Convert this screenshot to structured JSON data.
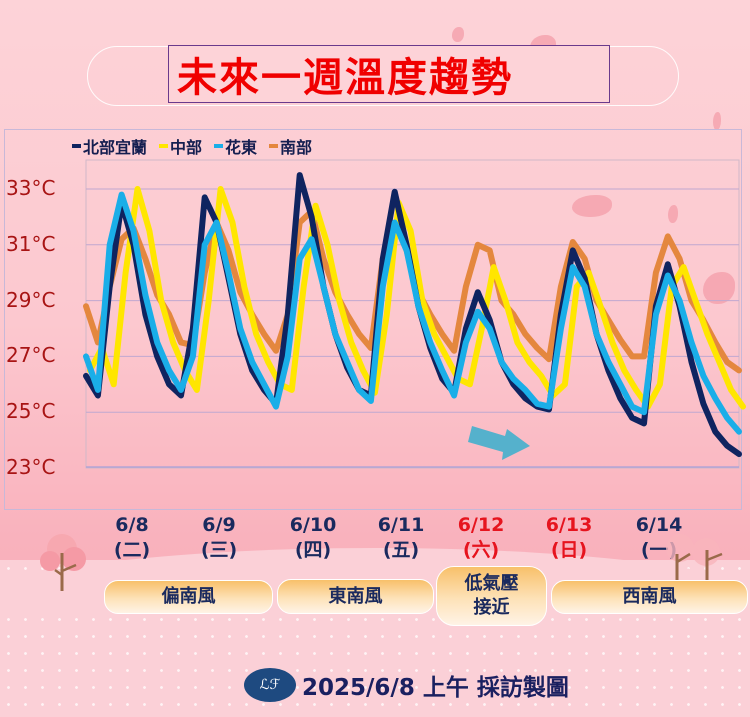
{
  "title": "未來一週溫度趨勢",
  "legend": [
    {
      "label": "北部宜蘭",
      "color": "#0f2460"
    },
    {
      "label": "中部",
      "color": "#ffe600"
    },
    {
      "label": "花東",
      "color": "#1aaee8"
    },
    {
      "label": "南部",
      "color": "#e4873e"
    }
  ],
  "days": [
    {
      "date": "6/8",
      "weekday": "(二)",
      "color": "#1a2a5e"
    },
    {
      "date": "6/9",
      "weekday": "(三)",
      "color": "#1a2a5e"
    },
    {
      "date": "6/10",
      "weekday": "(四)",
      "color": "#1a2a5e"
    },
    {
      "date": "6/11",
      "weekday": "(五)",
      "color": "#1a2a5e"
    },
    {
      "date": "6/12",
      "weekday": "(六)",
      "color": "#e6141e"
    },
    {
      "date": "6/13",
      "weekday": "(日)",
      "color": "#e6141e"
    },
    {
      "date": "6/14",
      "weekday": "(一)",
      "color": "#1a2a5e"
    }
  ],
  "wind": [
    {
      "label": "偏南風"
    },
    {
      "label": "東南風"
    },
    {
      "label": "低氣壓\n接近"
    },
    {
      "label": "西南風"
    }
  ],
  "footer": {
    "logo_icon": "logo-icon",
    "text": "2025/6/8 上午 採訪製圖"
  },
  "arrow": {
    "icon": "right-arrow-icon",
    "color": "#4cb0cc"
  },
  "chart_data": {
    "type": "line",
    "title": "未來一週溫度趨勢",
    "xlabel": "",
    "ylabel": "",
    "ylim": [
      23,
      33
    ],
    "yticks": [
      "33°C",
      "31°C",
      "29°C",
      "27°C",
      "25°C",
      "23°C"
    ],
    "ytick_values": [
      33,
      31,
      29,
      27,
      25,
      23
    ],
    "grid": true,
    "legend_position": "top-left",
    "categories": [
      "6/8 (二)",
      "6/9 (三)",
      "6/10 (四)",
      "6/11 (五)",
      "6/12 (六)",
      "6/13 (日)",
      "6/14 (一)"
    ],
    "x_note": "8 points per day (3-hourly), 56 points total",
    "series": [
      {
        "name": "北部宜蘭",
        "color": "#0f2460",
        "values": [
          26.3,
          25.6,
          29.5,
          32.5,
          31.0,
          28.5,
          27.0,
          26.0,
          25.6,
          28.0,
          32.7,
          31.8,
          29.8,
          27.8,
          26.5,
          25.8,
          25.3,
          28.5,
          33.5,
          32.0,
          29.5,
          27.8,
          26.6,
          25.8,
          25.6,
          30.5,
          32.9,
          31.0,
          28.8,
          27.3,
          26.2,
          25.7,
          28.0,
          29.3,
          28.3,
          26.8,
          26.0,
          25.5,
          25.2,
          25.1,
          28.5,
          30.8,
          29.8,
          27.8,
          26.5,
          25.5,
          24.8,
          24.6,
          28.8,
          30.3,
          28.8,
          26.8,
          25.3,
          24.3,
          23.8,
          23.5
        ]
      },
      {
        "name": "中部",
        "color": "#ffe600",
        "values": [
          26.5,
          27.3,
          26.0,
          30.0,
          33.0,
          31.5,
          29.0,
          27.5,
          26.5,
          25.8,
          29.0,
          33.0,
          31.8,
          29.5,
          27.8,
          26.8,
          26.0,
          25.8,
          29.5,
          32.4,
          31.0,
          29.0,
          27.5,
          26.5,
          25.7,
          28.5,
          32.5,
          31.5,
          29.0,
          27.8,
          27.0,
          26.2,
          26.0,
          28.0,
          30.2,
          29.0,
          27.5,
          26.8,
          26.3,
          25.6,
          26.0,
          29.5,
          30.0,
          28.8,
          27.5,
          26.5,
          25.8,
          25.2,
          26.0,
          29.5,
          30.2,
          29.0,
          27.8,
          26.8,
          25.8,
          25.2
        ]
      },
      {
        "name": "花東",
        "color": "#1aaee8",
        "values": [
          27.0,
          25.8,
          31.0,
          32.8,
          31.5,
          29.2,
          27.5,
          26.5,
          25.8,
          27.0,
          31.0,
          31.8,
          30.0,
          28.0,
          26.8,
          26.0,
          25.2,
          27.0,
          30.5,
          31.2,
          29.5,
          27.8,
          26.8,
          25.8,
          25.4,
          29.5,
          31.8,
          30.8,
          28.8,
          27.5,
          26.5,
          25.6,
          27.5,
          28.6,
          28.0,
          26.8,
          26.2,
          25.8,
          25.3,
          25.2,
          28.0,
          30.2,
          29.5,
          27.8,
          26.8,
          26.0,
          25.2,
          25.0,
          28.5,
          29.9,
          29.0,
          27.5,
          26.3,
          25.5,
          24.8,
          24.3
        ]
      },
      {
        "name": "南部",
        "color": "#e4873e",
        "values": [
          28.8,
          27.5,
          29.5,
          31.2,
          31.6,
          30.5,
          29.2,
          28.5,
          27.5,
          27.4,
          30.0,
          31.8,
          30.8,
          29.3,
          28.5,
          27.8,
          27.2,
          28.5,
          31.8,
          32.2,
          30.5,
          29.3,
          28.5,
          27.8,
          27.3,
          30.5,
          31.8,
          30.8,
          29.3,
          28.5,
          27.8,
          27.2,
          29.5,
          31.0,
          30.8,
          29.0,
          28.5,
          27.8,
          27.3,
          26.9,
          29.5,
          31.1,
          30.5,
          29.0,
          28.3,
          27.6,
          27.0,
          27.0,
          30.0,
          31.3,
          30.5,
          29.0,
          28.3,
          27.5,
          26.8,
          26.5
        ]
      }
    ],
    "annotations": [
      "wind: 偏南風 (6/8-6/9)",
      "東南風 (6/10-6/11)",
      "低氣壓接近 (6/12)",
      "西南風 (6/13-6/14)"
    ]
  }
}
